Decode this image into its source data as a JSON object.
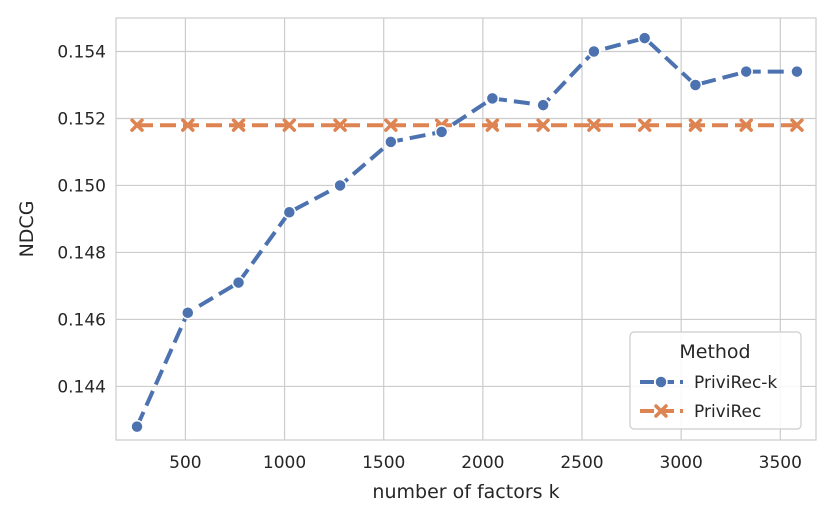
{
  "chart_data": {
    "type": "line",
    "xlabel": "number of factors k",
    "ylabel": "NDCG",
    "xlim": [
      150,
      3680
    ],
    "ylim": [
      0.1424,
      0.155
    ],
    "xticks": [
      500,
      1000,
      1500,
      2000,
      2500,
      3000,
      3500
    ],
    "yticks": [
      0.144,
      0.146,
      0.148,
      0.15,
      0.152,
      0.154
    ],
    "xtick_labels": [
      "500",
      "1000",
      "1500",
      "2000",
      "2500",
      "3000",
      "3500"
    ],
    "ytick_labels": [
      "0.144",
      "0.146",
      "0.148",
      "0.150",
      "0.152",
      "0.154"
    ],
    "grid": true,
    "legend": {
      "title": "Method",
      "position": "lower-right"
    },
    "x": [
      256,
      512,
      768,
      1024,
      1280,
      1536,
      1792,
      2048,
      2304,
      2560,
      2816,
      3072,
      3328,
      3584
    ],
    "series": [
      {
        "name": "PriviRec-k",
        "color": "#4c72b0",
        "marker": "circle",
        "values": [
          0.1428,
          0.1462,
          0.1471,
          0.1492,
          0.15,
          0.1513,
          0.1516,
          0.1526,
          0.1524,
          0.154,
          0.1544,
          0.153,
          0.1534,
          0.1534
        ]
      },
      {
        "name": "PriviRec",
        "color": "#dd8452",
        "marker": "x",
        "values": [
          0.1518,
          0.1518,
          0.1518,
          0.1518,
          0.1518,
          0.1518,
          0.1518,
          0.1518,
          0.1518,
          0.1518,
          0.1518,
          0.1518,
          0.1518,
          0.1518
        ]
      }
    ]
  }
}
